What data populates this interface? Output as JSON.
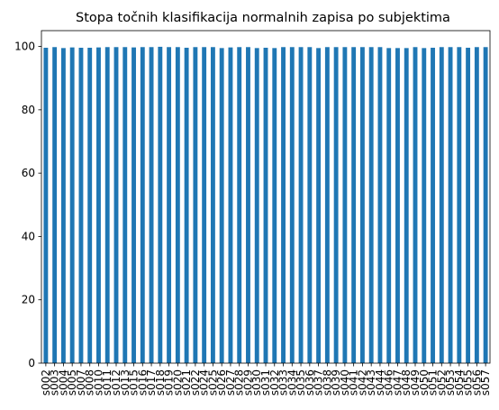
{
  "chart_data": {
    "type": "bar",
    "title": "Stopa točnih klasifikacija normalnih zapisa po subjektima",
    "xlabel": "",
    "ylabel": "",
    "ylim": [
      0,
      105
    ],
    "yticks": [
      0,
      20,
      40,
      60,
      80,
      100
    ],
    "grid": false,
    "legend": "none",
    "bar_color": "#1f77b4",
    "categories": [
      "s002",
      "s003",
      "s004",
      "s005",
      "s007",
      "s008",
      "s010",
      "s011",
      "s012",
      "s013",
      "s015",
      "s016",
      "s017",
      "s018",
      "s019",
      "s020",
      "s021",
      "s022",
      "s024",
      "s025",
      "s026",
      "s027",
      "s028",
      "s029",
      "s030",
      "s031",
      "s032",
      "s033",
      "s034",
      "s035",
      "s036",
      "s037",
      "s038",
      "s039",
      "s040",
      "s041",
      "s042",
      "s043",
      "s044",
      "s046",
      "s047",
      "s048",
      "s049",
      "s050",
      "s051",
      "s052",
      "s053",
      "s054",
      "s055",
      "s056",
      "s057"
    ],
    "values": [
      99.6,
      99.8,
      99.5,
      99.7,
      99.6,
      99.6,
      99.7,
      99.8,
      99.8,
      99.8,
      99.7,
      99.8,
      99.8,
      99.9,
      99.8,
      99.8,
      99.6,
      99.8,
      99.8,
      99.8,
      99.5,
      99.7,
      99.8,
      99.8,
      99.5,
      99.6,
      99.5,
      99.8,
      99.8,
      99.8,
      99.8,
      99.5,
      99.8,
      99.8,
      99.8,
      99.8,
      99.8,
      99.8,
      99.8,
      99.5,
      99.5,
      99.5,
      99.8,
      99.5,
      99.6,
      99.8,
      99.8,
      99.8,
      99.6,
      99.8,
      99.8
    ]
  }
}
